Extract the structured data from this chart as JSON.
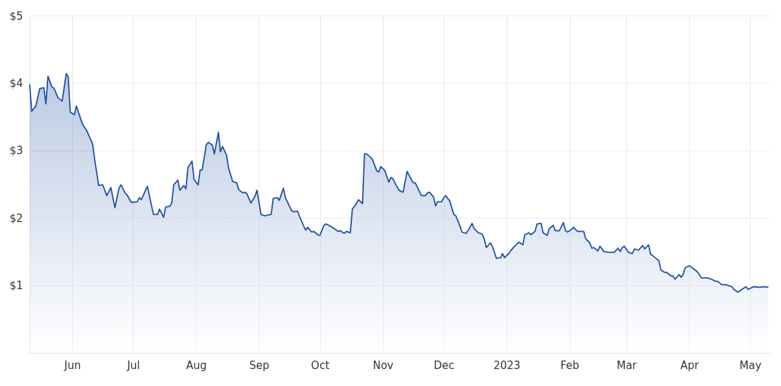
{
  "chart_data": {
    "type": "area",
    "xlim": [
      "2022-05-11",
      "2023-05-11"
    ],
    "ylim": [
      0,
      5
    ],
    "xticks": [
      {
        "value": "2022-06-01",
        "label": "Jun"
      },
      {
        "value": "2022-07-01",
        "label": "Jul"
      },
      {
        "value": "2022-08-01",
        "label": "Aug"
      },
      {
        "value": "2022-09-01",
        "label": "Sep"
      },
      {
        "value": "2022-10-01",
        "label": "Oct"
      },
      {
        "value": "2022-11-01",
        "label": "Nov"
      },
      {
        "value": "2022-12-01",
        "label": "Dec"
      },
      {
        "value": "2023-01-01",
        "label": "2023"
      },
      {
        "value": "2023-02-01",
        "label": "Feb"
      },
      {
        "value": "2023-03-01",
        "label": "Mar"
      },
      {
        "value": "2023-04-01",
        "label": "Apr"
      },
      {
        "value": "2023-05-01",
        "label": "May"
      }
    ],
    "yticks": [
      {
        "value": 1,
        "label": "$1"
      },
      {
        "value": 2,
        "label": "$2"
      },
      {
        "value": 3,
        "label": "$3"
      },
      {
        "value": 4,
        "label": "$4"
      },
      {
        "value": 5,
        "label": "$5"
      }
    ],
    "grid": true,
    "x": [
      "2022-05-11",
      "2022-05-12",
      "2022-05-14",
      "2022-05-16",
      "2022-05-18",
      "2022-05-19",
      "2022-05-20",
      "2022-05-22",
      "2022-05-23",
      "2022-05-25",
      "2022-05-27",
      "2022-05-29",
      "2022-05-30",
      "2022-05-31",
      "2022-06-02",
      "2022-06-03",
      "2022-06-06",
      "2022-06-08",
      "2022-06-11",
      "2022-06-12",
      "2022-06-14",
      "2022-06-16",
      "2022-06-18",
      "2022-06-20",
      "2022-06-22",
      "2022-06-24",
      "2022-06-25",
      "2022-06-27",
      "2022-06-28",
      "2022-06-30",
      "2022-07-03",
      "2022-07-04",
      "2022-07-05",
      "2022-07-08",
      "2022-07-10",
      "2022-07-11",
      "2022-07-13",
      "2022-07-14",
      "2022-07-16",
      "2022-07-17",
      "2022-07-19",
      "2022-07-20",
      "2022-07-21",
      "2022-07-23",
      "2022-07-24",
      "2022-07-26",
      "2022-07-27",
      "2022-07-28",
      "2022-07-30",
      "2022-07-31",
      "2022-08-02",
      "2022-08-03",
      "2022-08-04",
      "2022-08-06",
      "2022-08-07",
      "2022-08-09",
      "2022-08-10",
      "2022-08-12",
      "2022-08-13",
      "2022-08-14",
      "2022-08-16",
      "2022-08-17",
      "2022-08-19",
      "2022-08-21",
      "2022-08-22",
      "2022-08-24",
      "2022-08-25",
      "2022-08-26",
      "2022-08-28",
      "2022-08-30",
      "2022-08-31",
      "2022-09-02",
      "2022-09-04",
      "2022-09-05",
      "2022-09-07",
      "2022-09-08",
      "2022-09-10",
      "2022-09-11",
      "2022-09-13",
      "2022-09-14",
      "2022-09-15",
      "2022-09-17",
      "2022-09-18",
      "2022-09-20",
      "2022-09-21",
      "2022-09-23",
      "2022-09-24",
      "2022-09-25",
      "2022-09-27",
      "2022-09-28",
      "2022-09-30",
      "2022-10-01",
      "2022-10-03",
      "2022-10-04",
      "2022-10-06",
      "2022-10-07",
      "2022-10-09",
      "2022-10-10",
      "2022-10-11",
      "2022-10-13",
      "2022-10-14",
      "2022-10-16",
      "2022-10-17",
      "2022-10-19",
      "2022-10-20",
      "2022-10-22",
      "2022-10-23",
      "2022-10-24",
      "2022-10-26",
      "2022-10-27",
      "2022-10-29",
      "2022-10-30",
      "2022-10-31",
      "2022-11-02",
      "2022-11-04",
      "2022-11-05",
      "2022-11-06",
      "2022-11-08",
      "2022-11-09",
      "2022-11-11",
      "2022-11-13",
      "2022-11-14",
      "2022-11-16",
      "2022-11-17",
      "2022-11-20",
      "2022-11-22",
      "2022-11-23",
      "2022-11-24",
      "2022-11-26",
      "2022-11-27",
      "2022-11-28",
      "2022-11-30",
      "2022-12-01",
      "2022-12-02",
      "2022-12-04",
      "2022-12-06",
      "2022-12-07",
      "2022-12-09",
      "2022-12-10",
      "2022-12-12",
      "2022-12-13",
      "2022-12-15",
      "2022-12-16",
      "2022-12-18",
      "2022-12-20",
      "2022-12-21",
      "2022-12-22",
      "2022-12-24",
      "2022-12-25",
      "2022-12-27",
      "2022-12-29",
      "2022-12-30",
      "2022-12-31",
      "2023-01-02",
      "2023-01-04",
      "2023-01-07",
      "2023-01-09",
      "2023-01-10",
      "2023-01-12",
      "2023-01-13",
      "2023-01-15",
      "2023-01-16",
      "2023-01-18",
      "2023-01-19",
      "2023-01-21",
      "2023-01-22",
      "2023-01-24",
      "2023-01-25",
      "2023-01-27",
      "2023-01-29",
      "2023-01-30",
      "2023-01-31",
      "2023-02-02",
      "2023-02-03",
      "2023-02-05",
      "2023-02-07",
      "2023-02-08",
      "2023-02-09",
      "2023-02-11",
      "2023-02-12",
      "2023-02-13",
      "2023-02-15",
      "2023-02-16",
      "2023-02-18",
      "2023-02-20",
      "2023-02-23",
      "2023-02-25",
      "2023-02-26",
      "2023-02-27",
      "2023-02-28",
      "2023-03-02",
      "2023-03-04",
      "2023-03-05",
      "2023-03-07",
      "2023-03-09",
      "2023-03-10",
      "2023-03-12",
      "2023-03-13",
      "2023-03-14",
      "2023-03-16",
      "2023-03-17",
      "2023-03-18",
      "2023-03-20",
      "2023-03-21",
      "2023-03-23",
      "2023-03-24",
      "2023-03-25",
      "2023-03-27",
      "2023-03-28",
      "2023-03-29",
      "2023-03-30",
      "2023-04-01",
      "2023-04-03",
      "2023-04-05",
      "2023-04-07",
      "2023-04-10",
      "2023-04-12",
      "2023-04-14",
      "2023-04-15",
      "2023-04-17",
      "2023-04-19",
      "2023-04-22",
      "2023-04-23",
      "2023-04-25",
      "2023-04-27",
      "2023-04-29",
      "2023-04-30",
      "2023-05-02",
      "2023-05-03",
      "2023-05-05",
      "2023-05-06",
      "2023-05-08",
      "2023-05-09",
      "2023-05-10"
    ],
    "series": [
      {
        "color": "#1f4fa3",
        "values": [
          3.98,
          3.58,
          3.66,
          3.92,
          3.93,
          3.69,
          4.1,
          3.94,
          3.92,
          3.78,
          3.73,
          4.14,
          4.09,
          3.57,
          3.53,
          3.66,
          3.39,
          3.3,
          3.1,
          2.87,
          2.48,
          2.49,
          2.33,
          2.45,
          2.15,
          2.44,
          2.49,
          2.37,
          2.34,
          2.23,
          2.24,
          2.3,
          2.27,
          2.47,
          2.19,
          2.05,
          2.05,
          2.13,
          2.01,
          2.16,
          2.17,
          2.22,
          2.49,
          2.56,
          2.41,
          2.48,
          2.43,
          2.75,
          2.84,
          2.57,
          2.49,
          2.71,
          2.71,
          3.08,
          3.12,
          3.08,
          2.95,
          3.27,
          2.98,
          3.06,
          2.93,
          2.74,
          2.54,
          2.52,
          2.42,
          2.37,
          2.38,
          2.36,
          2.22,
          2.32,
          2.41,
          2.05,
          2.03,
          2.04,
          2.05,
          2.29,
          2.3,
          2.26,
          2.44,
          2.3,
          2.24,
          2.11,
          2.09,
          2.1,
          2.02,
          1.88,
          1.82,
          1.86,
          1.79,
          1.8,
          1.75,
          1.74,
          1.89,
          1.91,
          1.88,
          1.86,
          1.82,
          1.8,
          1.81,
          1.77,
          1.8,
          1.78,
          2.13,
          2.21,
          2.27,
          2.21,
          2.95,
          2.95,
          2.9,
          2.86,
          2.7,
          2.68,
          2.76,
          2.7,
          2.53,
          2.6,
          2.58,
          2.46,
          2.41,
          2.38,
          2.69,
          2.63,
          2.52,
          2.52,
          2.33,
          2.33,
          2.37,
          2.38,
          2.31,
          2.18,
          2.24,
          2.24,
          2.3,
          2.33,
          2.25,
          2.05,
          2.03,
          1.88,
          1.79,
          1.77,
          1.81,
          1.92,
          1.84,
          1.78,
          1.76,
          1.69,
          1.56,
          1.63,
          1.58,
          1.4,
          1.41,
          1.47,
          1.41,
          1.47,
          1.55,
          1.64,
          1.6,
          1.75,
          1.78,
          1.75,
          1.8,
          1.91,
          1.92,
          1.78,
          1.74,
          1.84,
          1.89,
          1.81,
          1.81,
          1.93,
          1.81,
          1.79,
          1.83,
          1.86,
          1.8,
          1.8,
          1.8,
          1.69,
          1.63,
          1.55,
          1.56,
          1.51,
          1.58,
          1.5,
          1.49,
          1.49,
          1.55,
          1.5,
          1.56,
          1.58,
          1.49,
          1.47,
          1.54,
          1.52,
          1.59,
          1.54,
          1.6,
          1.46,
          1.44,
          1.39,
          1.37,
          1.23,
          1.19,
          1.19,
          1.14,
          1.14,
          1.09,
          1.16,
          1.12,
          1.16,
          1.26,
          1.29,
          1.25,
          1.2,
          1.11,
          1.11,
          1.09,
          1.06,
          1.06,
          1.01,
          1.01,
          0.98,
          0.94,
          0.9,
          0.94,
          0.98,
          0.94,
          0.97,
          0.98,
          0.97,
          0.97,
          0.98,
          0.97,
          0.98
        ]
      }
    ]
  }
}
